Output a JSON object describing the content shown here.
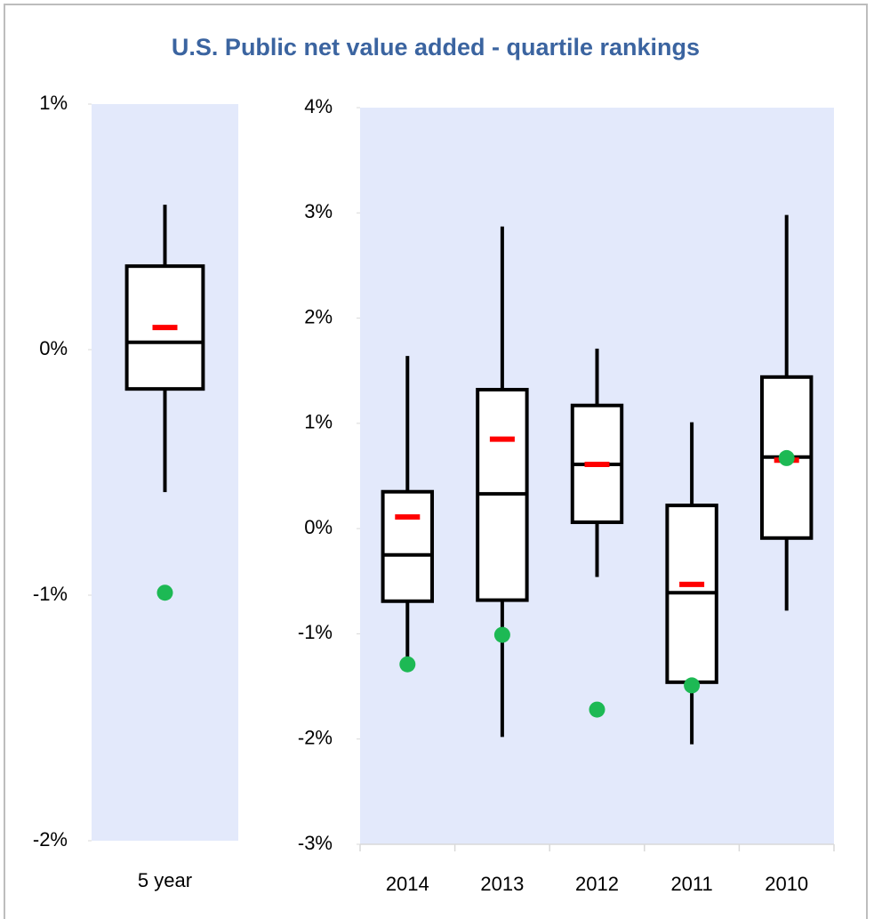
{
  "chart_data": [
    {
      "type": "box",
      "title": "U.S. Public net value added - quartile rankings",
      "categories": [
        "5 year"
      ],
      "whisker_low": [
        -0.58
      ],
      "q1": [
        -0.16
      ],
      "median": [
        0.03
      ],
      "q3": [
        0.34
      ],
      "whisker_high": [
        0.59
      ],
      "mean": [
        0.09
      ],
      "points": [
        -0.99
      ],
      "box_color": "#000000",
      "mean_color": "#ff0000",
      "point_color": "#1db954",
      "background": "#e3e9fb",
      "ylim": [
        -2,
        1
      ],
      "yticks": [
        {
          "value": -2,
          "label": "-2%"
        },
        {
          "value": -1,
          "label": "-1%"
        },
        {
          "value": 0,
          "label": "0%"
        },
        {
          "value": 1,
          "label": "1%"
        }
      ],
      "x_axis_line": false
    },
    {
      "type": "box",
      "categories": [
        "2014",
        "2013",
        "2012",
        "2011",
        "2010"
      ],
      "whisker_low": [
        -1.23,
        -1.98,
        -0.46,
        -2.05,
        -0.78
      ],
      "q1": [
        -0.69,
        -0.68,
        0.06,
        -1.46,
        -0.09
      ],
      "median": [
        -0.25,
        0.33,
        0.61,
        -0.61,
        0.68
      ],
      "q3": [
        0.35,
        1.32,
        1.17,
        0.22,
        1.44
      ],
      "whisker_high": [
        1.64,
        2.87,
        1.71,
        1.01,
        2.98
      ],
      "mean": [
        0.11,
        0.85,
        0.61,
        -0.53,
        0.65
      ],
      "points": [
        -1.29,
        -1.01,
        -1.72,
        -1.49,
        0.67
      ],
      "box_color": "#000000",
      "mean_color": "#ff0000",
      "point_color": "#1db954",
      "background": "#e3e9fb",
      "ylim": [
        -3,
        4
      ],
      "yticks": [
        {
          "value": -3,
          "label": "-3%"
        },
        {
          "value": -2,
          "label": "-2%"
        },
        {
          "value": -1,
          "label": "-1%"
        },
        {
          "value": 0,
          "label": "0%"
        },
        {
          "value": 1,
          "label": "1%"
        },
        {
          "value": 2,
          "label": "2%"
        },
        {
          "value": 3,
          "label": "3%"
        },
        {
          "value": 4,
          "label": "4%"
        }
      ],
      "x_axis_line": true
    }
  ]
}
